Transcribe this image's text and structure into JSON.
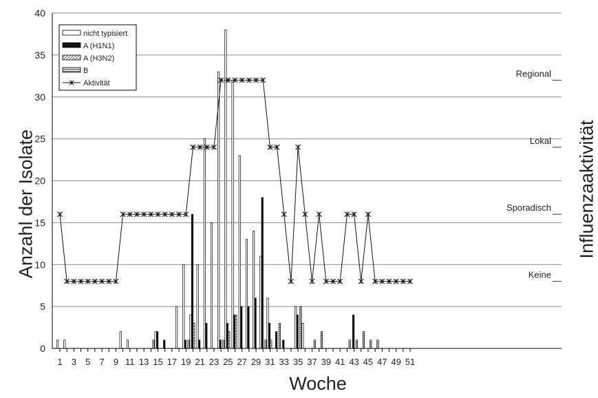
{
  "chart_data": {
    "type": "bar",
    "xlabel": "Woche",
    "ylabel": "Anzahl der Isolate",
    "y2label": "Influenzaaktivität",
    "ylim": [
      0,
      40
    ],
    "yticks": [
      0,
      5,
      10,
      15,
      20,
      25,
      30,
      35,
      40
    ],
    "xticks": [
      1,
      3,
      5,
      7,
      9,
      11,
      13,
      15,
      17,
      19,
      21,
      23,
      25,
      27,
      29,
      31,
      33,
      35,
      37,
      39,
      41,
      43,
      45,
      47,
      49,
      51
    ],
    "x2ticks": [
      2,
      4,
      6,
      8,
      10,
      12,
      14,
      16,
      18,
      20,
      22,
      24,
      26,
      28,
      30,
      32,
      34,
      36,
      38,
      40,
      42,
      44,
      46,
      48,
      50
    ],
    "activity_levels": [
      {
        "label": "Keine",
        "value": 8
      },
      {
        "label": "Sporadisch",
        "value": 16
      },
      {
        "label": "Lokal",
        "value": 24
      },
      {
        "label": "Regional",
        "value": 32
      }
    ],
    "grid": true,
    "legend_position": "top-left",
    "series": [
      {
        "name": "nicht typisiert",
        "style": "white",
        "points": [
          [
            1,
            1
          ],
          [
            2,
            1
          ],
          [
            10,
            2
          ],
          [
            11,
            1
          ],
          [
            15,
            2
          ],
          [
            18,
            5
          ],
          [
            19,
            10
          ],
          [
            20,
            4
          ],
          [
            21,
            10
          ],
          [
            22,
            25
          ],
          [
            23,
            15
          ],
          [
            24,
            33
          ],
          [
            25,
            38
          ],
          [
            26,
            32
          ],
          [
            27,
            23
          ],
          [
            28,
            13
          ],
          [
            29,
            14
          ],
          [
            30,
            11
          ],
          [
            31,
            6
          ],
          [
            35,
            5
          ],
          [
            36,
            3
          ]
        ]
      },
      {
        "name": "A (H1N1)",
        "style": "black",
        "points": [
          [
            15,
            2
          ],
          [
            16,
            1
          ],
          [
            19,
            1
          ],
          [
            20,
            16
          ],
          [
            21,
            1
          ],
          [
            22,
            3
          ],
          [
            24,
            1
          ],
          [
            25,
            3
          ],
          [
            26,
            4
          ],
          [
            27,
            5
          ],
          [
            28,
            5
          ],
          [
            29,
            6
          ],
          [
            30,
            18
          ],
          [
            31,
            3
          ],
          [
            32,
            2
          ],
          [
            33,
            1
          ],
          [
            35,
            4
          ],
          [
            43,
            4
          ]
        ]
      },
      {
        "name": "A (H3N2)",
        "style": "hatched",
        "points": [
          [
            20,
            3
          ],
          [
            25,
            2
          ],
          [
            26,
            4
          ],
          [
            31,
            1
          ]
        ]
      },
      {
        "name": "B",
        "style": "striped",
        "points": [
          [
            14,
            1
          ],
          [
            19,
            1
          ],
          [
            24,
            1
          ],
          [
            30,
            1
          ],
          [
            32,
            3
          ],
          [
            35,
            5
          ],
          [
            37,
            1
          ],
          [
            38,
            2
          ],
          [
            42,
            1
          ],
          [
            43,
            1
          ],
          [
            44,
            2
          ],
          [
            45,
            1
          ],
          [
            46,
            1
          ]
        ]
      },
      {
        "name": "Aktivität",
        "style": "line",
        "points": [
          [
            1,
            16
          ],
          [
            2,
            8
          ],
          [
            3,
            8
          ],
          [
            4,
            8
          ],
          [
            5,
            8
          ],
          [
            6,
            8
          ],
          [
            7,
            8
          ],
          [
            8,
            8
          ],
          [
            9,
            8
          ],
          [
            10,
            16
          ],
          [
            11,
            16
          ],
          [
            12,
            16
          ],
          [
            13,
            16
          ],
          [
            14,
            16
          ],
          [
            15,
            16
          ],
          [
            16,
            16
          ],
          [
            17,
            16
          ],
          [
            18,
            16
          ],
          [
            19,
            16
          ],
          [
            20,
            24
          ],
          [
            21,
            24
          ],
          [
            22,
            24
          ],
          [
            23,
            24
          ],
          [
            24,
            32
          ],
          [
            25,
            32
          ],
          [
            26,
            32
          ],
          [
            27,
            32
          ],
          [
            28,
            32
          ],
          [
            29,
            32
          ],
          [
            30,
            32
          ],
          [
            31,
            24
          ],
          [
            32,
            24
          ],
          [
            33,
            16
          ],
          [
            34,
            8
          ],
          [
            35,
            24
          ],
          [
            36,
            16
          ],
          [
            37,
            8
          ],
          [
            38,
            16
          ],
          [
            39,
            8
          ],
          [
            40,
            8
          ],
          [
            41,
            8
          ],
          [
            42,
            16
          ],
          [
            43,
            16
          ],
          [
            44,
            8
          ],
          [
            45,
            16
          ],
          [
            46,
            8
          ],
          [
            47,
            8
          ],
          [
            48,
            8
          ],
          [
            49,
            8
          ],
          [
            50,
            8
          ],
          [
            51,
            8
          ]
        ]
      }
    ]
  }
}
